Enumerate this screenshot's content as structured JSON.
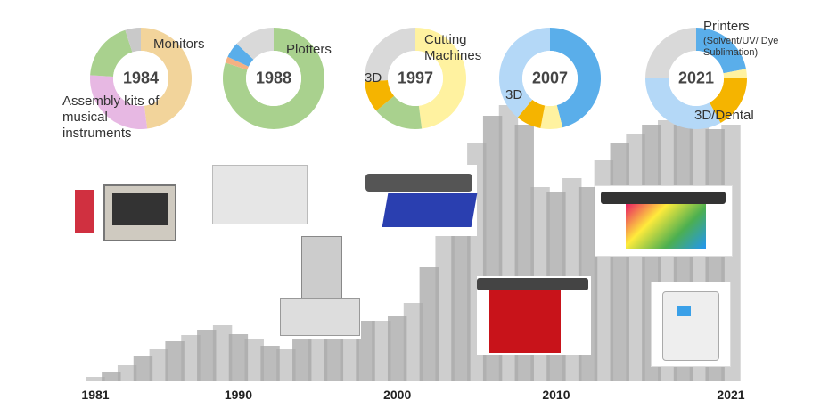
{
  "chart_data": [
    {
      "type": "bar",
      "categories": [
        "1981",
        null,
        null,
        null,
        null,
        null,
        null,
        null,
        null,
        "1990",
        null,
        null,
        null,
        null,
        null,
        null,
        null,
        null,
        null,
        "2000",
        null,
        null,
        null,
        null,
        null,
        null,
        null,
        null,
        null,
        "2010",
        null,
        null,
        null,
        null,
        null,
        null,
        null,
        null,
        null,
        null,
        "2021"
      ],
      "values": [
        5,
        10,
        18,
        28,
        36,
        45,
        52,
        58,
        63,
        53,
        48,
        40,
        36,
        48,
        56,
        63,
        73,
        68,
        68,
        73,
        88,
        128,
        178,
        228,
        268,
        298,
        310,
        288,
        218,
        213,
        228,
        218,
        248,
        268,
        278,
        288,
        293,
        288,
        298,
        283,
        288
      ],
      "color": "#a6a6a6"
    },
    {
      "type": "pie",
      "center_label": "1984",
      "categories": [
        "Monitors",
        "Assembly kits of musical instruments",
        null,
        null
      ],
      "values": [
        48,
        28,
        19,
        5
      ],
      "colors": [
        "#f2d49b",
        "#e7b8e3",
        "#a9d18e",
        "#c9c9c9"
      ]
    },
    {
      "type": "pie",
      "center_label": "1988",
      "categories": [
        "Plotters",
        null,
        null,
        null
      ],
      "values": [
        80,
        2,
        5,
        13
      ],
      "colors": [
        "#a9d18e",
        "#f4b183",
        "#5aaeea",
        "#d9d9d9"
      ]
    },
    {
      "type": "pie",
      "center_label": "1997",
      "categories": [
        "Cutting Machines",
        null,
        "3D",
        null
      ],
      "values": [
        48,
        16,
        10,
        26
      ],
      "colors": [
        "#fff2a0",
        "#a9d18e",
        "#f5b400",
        "#d9d9d9"
      ]
    },
    {
      "type": "pie",
      "center_label": "2007",
      "categories": [
        null,
        null,
        "3D",
        null
      ],
      "values": [
        46,
        7,
        8,
        39
      ],
      "colors": [
        "#5aaeea",
        "#fff2a0",
        "#f5b400",
        "#b4d8f7"
      ]
    },
    {
      "type": "pie",
      "center_label": "2021",
      "annotation": "(Solvent/UV/ Dye Sublimation)",
      "categories": [
        "Printers",
        null,
        "3D/Dental",
        null,
        null
      ],
      "values": [
        22,
        3,
        17,
        33,
        25
      ],
      "colors": [
        "#5aaeea",
        "#fff2a0",
        "#f5b400",
        "#b4d8f7",
        "#d9d9d9"
      ]
    }
  ]
}
